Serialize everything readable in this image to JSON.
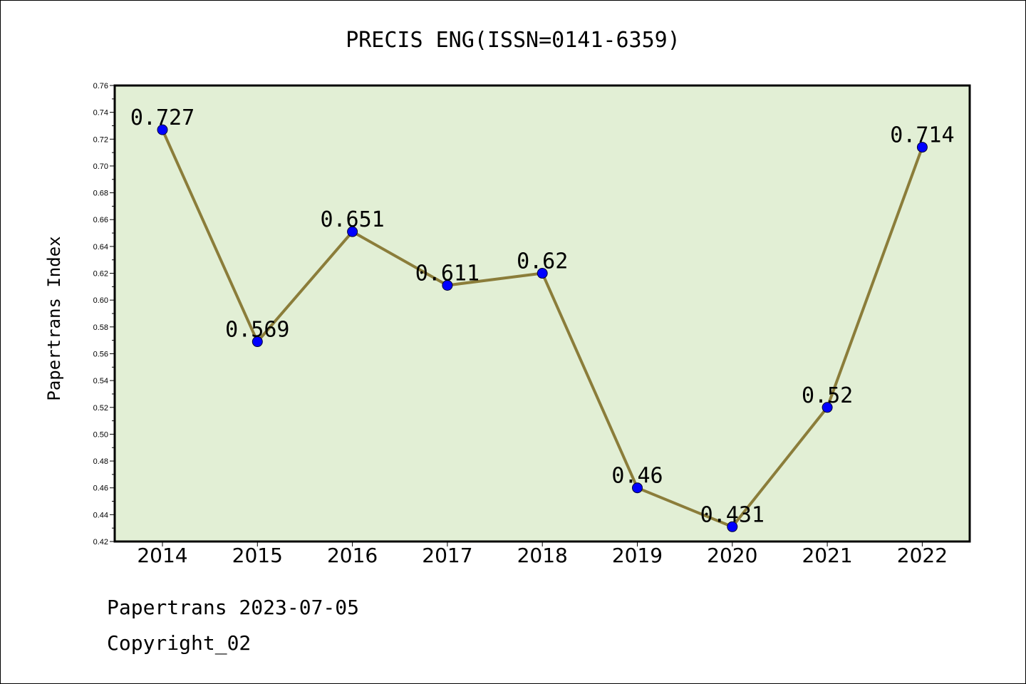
{
  "chart_data": {
    "type": "line",
    "title": "PRECIS ENG(ISSN=0141-6359)",
    "xlabel": "",
    "ylabel": "Papertrans Index",
    "categories": [
      "2014",
      "2015",
      "2016",
      "2017",
      "2018",
      "2019",
      "2020",
      "2021",
      "2022"
    ],
    "series": [
      {
        "values": [
          0.727,
          0.569,
          0.651,
          0.611,
          0.62,
          0.46,
          0.431,
          0.52,
          0.714
        ],
        "labels": [
          "0.727",
          "0.569",
          "0.651",
          "0.611",
          "0.62",
          "0.46",
          "0.431",
          "0.52",
          "0.714"
        ]
      }
    ],
    "ylim": [
      0.42,
      0.76
    ],
    "yticks": [
      "0.42",
      "0.44",
      "0.46",
      "0.48",
      "0.50",
      "0.52",
      "0.54",
      "0.56",
      "0.58",
      "0.60",
      "0.62",
      "0.64",
      "0.66",
      "0.68",
      "0.70",
      "0.72",
      "0.74",
      "0.76"
    ],
    "grid": false,
    "legend": "none",
    "colors": {
      "plot_background": "#e2efd5",
      "line": "#8b7d3a",
      "marker": "#0000ff"
    }
  },
  "footer": {
    "line1": "Papertrans 2023-07-05",
    "line2": "Copyright_02"
  }
}
